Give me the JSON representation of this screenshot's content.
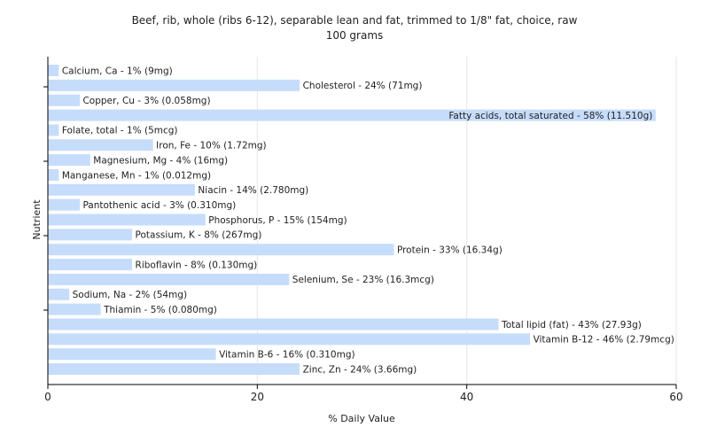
{
  "chart_data": {
    "type": "bar",
    "orientation": "horizontal",
    "title": "Beef, rib, whole (ribs 6-12), separable lean and fat, trimmed to 1/8\" fat, choice, raw",
    "subtitle": "100 grams",
    "xlabel": "% Daily Value",
    "ylabel": "Nutrient",
    "xlim": [
      0,
      60
    ],
    "xticks": [
      0,
      20,
      40,
      60
    ],
    "grid": true,
    "bar_color": "#c6dcfb",
    "categories": [
      "Calcium, Ca",
      "Cholesterol",
      "Copper, Cu",
      "Fatty acids, total saturated",
      "Folate, total",
      "Iron, Fe",
      "Magnesium, Mg",
      "Manganese, Mn",
      "Niacin",
      "Pantothenic acid",
      "Phosphorus, P",
      "Potassium, K",
      "Protein",
      "Riboflavin",
      "Selenium, Se",
      "Sodium, Na",
      "Thiamin",
      "Total lipid (fat)",
      "Vitamin B-12",
      "Vitamin B-6",
      "Zinc, Zn"
    ],
    "values": [
      1,
      24,
      3,
      58,
      1,
      10,
      4,
      1,
      14,
      3,
      15,
      8,
      33,
      8,
      23,
      2,
      5,
      43,
      46,
      16,
      24
    ],
    "labels": [
      "Calcium, Ca - 1% (9mg)",
      "Cholesterol - 24% (71mg)",
      "Copper, Cu - 3% (0.058mg)",
      "Fatty acids, total saturated - 58% (11.510g)",
      "Folate, total - 1% (5mcg)",
      "Iron, Fe - 10% (1.72mg)",
      "Magnesium, Mg - 4% (16mg)",
      "Manganese, Mn - 1% (0.012mg)",
      "Niacin - 14% (2.780mg)",
      "Pantothenic acid - 3% (0.310mg)",
      "Phosphorus, P - 15% (154mg)",
      "Potassium, K - 8% (267mg)",
      "Protein - 33% (16.34g)",
      "Riboflavin - 8% (0.130mg)",
      "Selenium, Se - 23% (16.3mcg)",
      "Sodium, Na - 2% (54mg)",
      "Thiamin - 5% (0.080mg)",
      "Total lipid (fat) - 43% (27.93g)",
      "Vitamin B-12 - 46% (2.79mcg)",
      "Vitamin B-6 - 16% (0.310mg)",
      "Zinc, Zn - 24% (3.66mg)"
    ]
  }
}
